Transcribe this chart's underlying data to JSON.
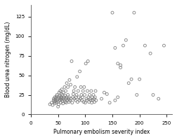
{
  "title": "",
  "xlabel": "Pulmonary embolism severity index",
  "ylabel": "Blood urea nitrogen (mg/dL)",
  "xlim": [
    0,
    260
  ],
  "ylim": [
    0,
    140
  ],
  "xticks": [
    0,
    50,
    100,
    150,
    200,
    250
  ],
  "yticks": [
    0,
    25,
    50,
    75,
    100,
    125
  ],
  "background_color": "#ffffff",
  "marker_color": "none",
  "marker_edge_color": "#808080",
  "marker_size": 4,
  "scatter_x": [
    35,
    38,
    40,
    42,
    42,
    43,
    44,
    44,
    45,
    45,
    46,
    47,
    47,
    48,
    48,
    49,
    50,
    50,
    51,
    52,
    52,
    53,
    53,
    54,
    54,
    55,
    55,
    56,
    56,
    57,
    57,
    58,
    58,
    59,
    60,
    60,
    61,
    62,
    62,
    63,
    63,
    64,
    65,
    65,
    66,
    66,
    67,
    68,
    68,
    69,
    70,
    70,
    71,
    72,
    73,
    74,
    75,
    76,
    77,
    78,
    79,
    80,
    81,
    82,
    83,
    84,
    85,
    86,
    87,
    88,
    89,
    90,
    91,
    92,
    93,
    94,
    95,
    96,
    97,
    98,
    99,
    100,
    101,
    102,
    103,
    104,
    105,
    106,
    107,
    108,
    109,
    110,
    111,
    112,
    113,
    114,
    115,
    116,
    117,
    118,
    119,
    120,
    130,
    135,
    140,
    145,
    150,
    155,
    155,
    160,
    160,
    165,
    165,
    170,
    175,
    180,
    185,
    190,
    195,
    200,
    210,
    220,
    225,
    235,
    245
  ],
  "scatter_y": [
    13,
    15,
    12,
    18,
    20,
    16,
    14,
    22,
    17,
    19,
    21,
    15,
    23,
    18,
    25,
    20,
    10,
    16,
    13,
    22,
    28,
    18,
    24,
    20,
    30,
    15,
    22,
    19,
    26,
    21,
    32,
    17,
    25,
    14,
    20,
    28,
    22,
    18,
    35,
    24,
    16,
    30,
    20,
    15,
    22,
    40,
    18,
    25,
    35,
    20,
    16,
    22,
    44,
    18,
    38,
    20,
    68,
    15,
    22,
    26,
    30,
    20,
    35,
    18,
    22,
    25,
    48,
    16,
    30,
    22,
    18,
    55,
    20,
    35,
    25,
    18,
    22,
    30,
    16,
    35,
    25,
    15,
    65,
    20,
    18,
    30,
    68,
    22,
    16,
    25,
    20,
    18,
    30,
    15,
    22,
    18,
    25,
    20,
    16,
    22,
    30,
    18,
    20,
    28,
    26,
    15,
    130,
    85,
    18,
    65,
    22,
    60,
    63,
    88,
    95,
    40,
    45,
    130,
    25,
    45,
    88,
    78,
    25,
    20,
    88
  ]
}
